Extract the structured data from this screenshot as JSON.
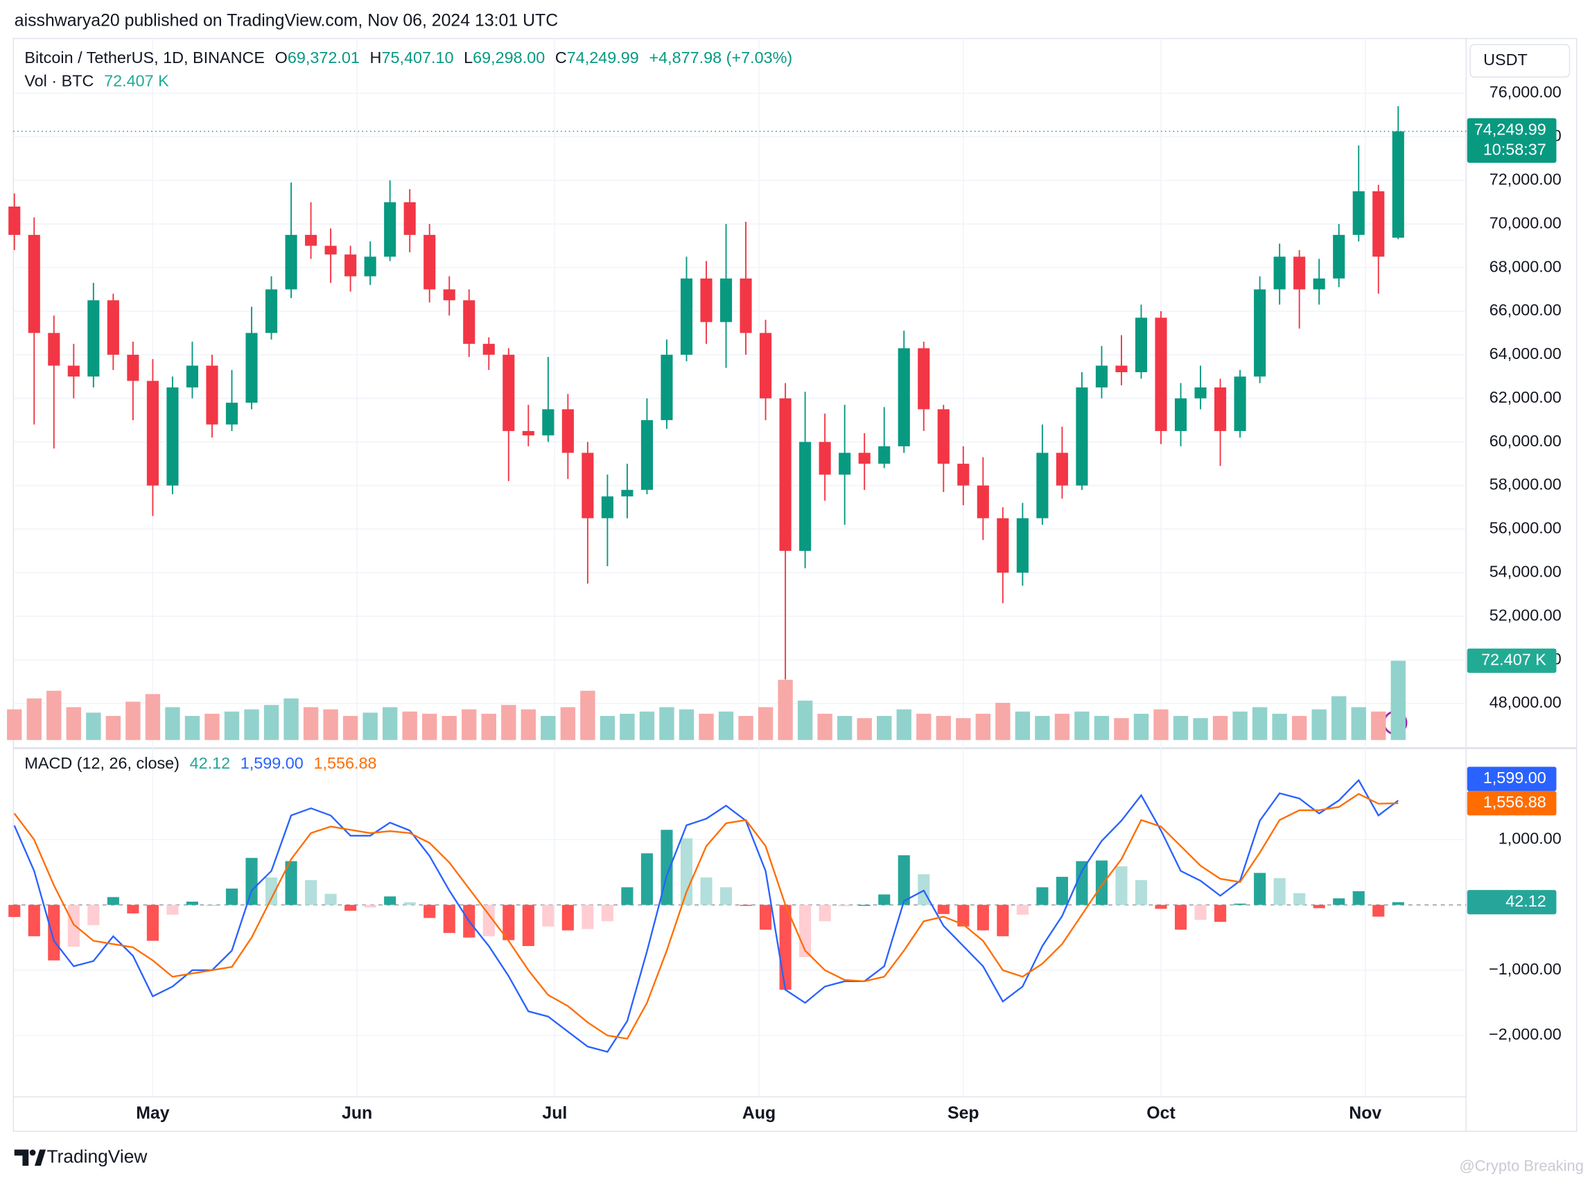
{
  "header": {
    "published": "aisshwarya20 published on TradingView.com, Nov 06, 2024 13:01 UTC"
  },
  "footer": {
    "brand": "TradingView",
    "watermark": "@Crypto Breaking"
  },
  "chart_data": [
    {
      "type": "candlestick",
      "title": "Bitcoin / TetherUS, 1D, BINANCE",
      "ohlc_legend": [
        {
          "label": "O",
          "value": "69,372.01"
        },
        {
          "label": "H",
          "value": "75,407.10"
        },
        {
          "label": "L",
          "value": "69,298.00"
        },
        {
          "label": "C",
          "value": "74,249.99"
        }
      ],
      "change": "+4,877.98 (+7.03%)",
      "currency": "USDT",
      "last_price": {
        "label": "74,249.99",
        "countdown": "10:58:37"
      },
      "up_color": "#089981",
      "down_color": "#f23645",
      "grid": true,
      "x": [
        0,
        3,
        6,
        9,
        12,
        15,
        18,
        21,
        24,
        27,
        30,
        33,
        36,
        39,
        42,
        45,
        48,
        51,
        54,
        57,
        60,
        63,
        66,
        69,
        72,
        75,
        78,
        81,
        84,
        87,
        90,
        93,
        96,
        99,
        102,
        105,
        108,
        111,
        114,
        117,
        120,
        123,
        126,
        129,
        132,
        135,
        138,
        141,
        144,
        147,
        150,
        153,
        156,
        159,
        162,
        165,
        168,
        171,
        174,
        177,
        180,
        183,
        186,
        189,
        192,
        195,
        198,
        201,
        204,
        207,
        210
      ],
      "xlim": [
        0,
        220
      ],
      "xticks": [
        {
          "value": 21,
          "label": "May"
        },
        {
          "value": 52,
          "label": "Jun"
        },
        {
          "value": 82,
          "label": "Jul"
        },
        {
          "value": 113,
          "label": "Aug"
        },
        {
          "value": 144,
          "label": "Sep"
        },
        {
          "value": 174,
          "label": "Oct"
        },
        {
          "value": 205,
          "label": "Nov"
        }
      ],
      "open": [
        70800,
        69500,
        65000,
        63500,
        63000,
        66500,
        64000,
        62800,
        58000,
        62500,
        63500,
        60800,
        61800,
        65000,
        67000,
        69500,
        69000,
        68600,
        67600,
        68500,
        71000,
        69500,
        67000,
        66500,
        64500,
        64000,
        60500,
        60300,
        61500,
        59500,
        56500,
        57500,
        57800,
        61000,
        64000,
        67500,
        65500,
        67500,
        65000,
        62000,
        55000,
        60000,
        58500,
        59500,
        59000,
        59800,
        64300,
        61500,
        59000,
        58000,
        56500,
        54000,
        56500,
        59500,
        58000,
        62500,
        63500,
        63200,
        65700,
        60500,
        62000,
        62500,
        60500,
        63000,
        67000,
        68500,
        67000,
        67500,
        69500,
        71500,
        69372.01
      ],
      "high": [
        71400,
        70300,
        65800,
        64500,
        67300,
        66800,
        64600,
        63800,
        63000,
        64600,
        64000,
        63300,
        66200,
        67600,
        71900,
        71000,
        69800,
        69000,
        69200,
        72000,
        71600,
        70000,
        67600,
        67000,
        64800,
        64300,
        61700,
        63900,
        62200,
        60000,
        58500,
        59000,
        62000,
        64700,
        68500,
        68300,
        70000,
        70100,
        65600,
        62700,
        62300,
        61300,
        61700,
        60400,
        61600,
        65100,
        64600,
        61700,
        59800,
        59300,
        57000,
        57200,
        60800,
        60700,
        63200,
        64400,
        64900,
        66300,
        66000,
        62700,
        63500,
        62900,
        63300,
        67600,
        69100,
        68800,
        68400,
        70000,
        73600,
        71800,
        75407.1
      ],
      "low": [
        68800,
        60800,
        59700,
        62000,
        62500,
        63300,
        61000,
        56600,
        57600,
        62000,
        60200,
        60500,
        61500,
        64700,
        66600,
        68400,
        67300,
        66900,
        67200,
        68300,
        68700,
        66400,
        65800,
        63900,
        63300,
        58200,
        59800,
        60000,
        58300,
        53500,
        54300,
        56500,
        57600,
        60600,
        63700,
        64500,
        63400,
        64000,
        61000,
        49100,
        54200,
        57300,
        56200,
        57800,
        58800,
        59500,
        60500,
        57700,
        57100,
        55500,
        52600,
        53400,
        56200,
        57400,
        57800,
        62000,
        62600,
        62900,
        59900,
        59800,
        61500,
        58900,
        60200,
        62700,
        66300,
        65200,
        66300,
        67100,
        69200,
        66800,
        69298.0
      ],
      "close": [
        69500,
        65000,
        63500,
        63000,
        66500,
        64000,
        62800,
        58000,
        62500,
        63500,
        60800,
        61800,
        65000,
        67000,
        69500,
        69000,
        68600,
        67600,
        68500,
        71000,
        69500,
        67000,
        66500,
        64500,
        64000,
        60500,
        60300,
        61500,
        59500,
        56500,
        57500,
        57800,
        61000,
        64000,
        67500,
        65500,
        67500,
        65000,
        62000,
        55000,
        60000,
        58500,
        59500,
        59000,
        59800,
        64300,
        61500,
        59000,
        58000,
        56500,
        54000,
        56500,
        59500,
        58000,
        62500,
        63500,
        63200,
        65700,
        60500,
        62000,
        62500,
        60500,
        63000,
        67000,
        68500,
        67000,
        67500,
        69500,
        71500,
        68500,
        74249.99
      ],
      "ylim": [
        45950,
        78510
      ],
      "yticks": [
        {
          "value": 48000,
          "label": "48,000.00"
        },
        {
          "value": 50000,
          "label": "50,000.00"
        },
        {
          "value": 52000,
          "label": "52,000.00"
        },
        {
          "value": 54000,
          "label": "54,000.00"
        },
        {
          "value": 56000,
          "label": "56,000.00"
        },
        {
          "value": 58000,
          "label": "58,000.00"
        },
        {
          "value": 60000,
          "label": "60,000.00"
        },
        {
          "value": 62000,
          "label": "62,000.00"
        },
        {
          "value": 64000,
          "label": "64,000.00"
        },
        {
          "value": 66000,
          "label": "66,000.00"
        },
        {
          "value": 68000,
          "label": "68,000.00"
        },
        {
          "value": 70000,
          "label": "70,000.00"
        },
        {
          "value": 72000,
          "label": "72,000.00"
        },
        {
          "value": 74000,
          "label": "74,000.00"
        },
        {
          "value": 76000,
          "label": "76,000.00"
        }
      ]
    },
    {
      "type": "volume-bar",
      "title": "Vol · BTC",
      "value_label": "72.407 K",
      "up_color": "#92d2cc",
      "down_color": "#f7a9a7",
      "label_color": "#22ab94",
      "x": [
        0,
        3,
        6,
        9,
        12,
        15,
        18,
        21,
        24,
        27,
        30,
        33,
        36,
        39,
        42,
        45,
        48,
        51,
        54,
        57,
        60,
        63,
        66,
        69,
        72,
        75,
        78,
        81,
        84,
        87,
        90,
        93,
        96,
        99,
        102,
        105,
        108,
        111,
        114,
        117,
        120,
        123,
        126,
        129,
        132,
        135,
        138,
        141,
        144,
        147,
        150,
        153,
        156,
        159,
        162,
        165,
        168,
        171,
        174,
        177,
        180,
        183,
        186,
        189,
        192,
        195,
        198,
        201,
        204,
        207,
        210
      ],
      "xlim": [
        0,
        220
      ],
      "values": [
        28,
        38,
        45,
        30,
        25,
        22,
        35,
        42,
        30,
        22,
        24,
        26,
        28,
        32,
        38,
        30,
        28,
        22,
        25,
        30,
        26,
        24,
        22,
        28,
        24,
        32,
        28,
        22,
        30,
        45,
        22,
        24,
        26,
        30,
        28,
        24,
        26,
        22,
        30,
        55,
        36,
        24,
        22,
        20,
        22,
        28,
        24,
        22,
        20,
        24,
        34,
        26,
        22,
        24,
        26,
        22,
        20,
        24,
        28,
        22,
        20,
        22,
        26,
        30,
        24,
        22,
        28,
        40,
        30,
        26,
        72.407
      ],
      "ylim": [
        0,
        100
      ]
    },
    {
      "type": "macd",
      "title": "MACD (12, 26, close)",
      "x": [
        0,
        3,
        6,
        9,
        12,
        15,
        18,
        21,
        24,
        27,
        30,
        33,
        36,
        39,
        42,
        45,
        48,
        51,
        54,
        57,
        60,
        63,
        66,
        69,
        72,
        75,
        78,
        81,
        84,
        87,
        90,
        93,
        96,
        99,
        102,
        105,
        108,
        111,
        114,
        117,
        120,
        123,
        126,
        129,
        132,
        135,
        138,
        141,
        144,
        147,
        150,
        153,
        156,
        159,
        162,
        165,
        168,
        171,
        174,
        177,
        180,
        183,
        186,
        189,
        192,
        195,
        198,
        201,
        204,
        207,
        210
      ],
      "xlim": [
        0,
        220
      ],
      "ylim": [
        -2940,
        2370
      ],
      "yticks": [
        {
          "value": -2000,
          "label": "−2,000.00"
        },
        {
          "value": -1000,
          "label": "−1,000.00"
        },
        {
          "value": 1000,
          "label": "1,000.00"
        }
      ],
      "histogram": {
        "colors": [
          "#26a69a",
          "#b2dfdb",
          "#ff5252",
          "#ffcdd2"
        ],
        "legend_value": "42.12",
        "label_color": "#26a69a",
        "values": [
          -185,
          -480,
          -850,
          -640,
          -310,
          120,
          -130,
          -550,
          -150,
          50,
          0,
          250,
          720,
          420,
          670,
          380,
          170,
          -90,
          -40,
          130,
          40,
          -200,
          -430,
          -500,
          -480,
          -540,
          -630,
          -330,
          -390,
          -370,
          -250,
          270,
          790,
          1150,
          1020,
          420,
          270,
          -10,
          -380,
          -1300,
          -800,
          -250,
          -20,
          0,
          160,
          760,
          470,
          -140,
          -330,
          -390,
          -480,
          -150,
          270,
          430,
          670,
          680,
          590,
          380,
          -60,
          -380,
          -230,
          -260,
          20,
          490,
          410,
          180,
          -50,
          100,
          210,
          -180,
          42.12
        ]
      },
      "series": [
        {
          "color": "#2962ff",
          "legend_value": "1,599.00",
          "values": [
            1215,
            520,
            -550,
            -940,
            -860,
            -480,
            -780,
            -1400,
            -1250,
            -1000,
            -1000,
            -700,
            220,
            520,
            1370,
            1480,
            1370,
            1060,
            1060,
            1260,
            1140,
            750,
            220,
            -250,
            -630,
            -1090,
            -1630,
            -1710,
            -1940,
            -2170,
            -2250,
            -1780,
            -710,
            450,
            1220,
            1320,
            1520,
            1290,
            520,
            -1300,
            -1500,
            -1250,
            -1170,
            -1170,
            -940,
            60,
            220,
            -320,
            -630,
            -940,
            -1480,
            -1250,
            -630,
            -170,
            520,
            980,
            1290,
            1680,
            1140,
            520,
            370,
            140,
            370,
            1290,
            1710,
            1630,
            1400,
            1600,
            1910,
            1370,
            1599
          ]
        },
        {
          "color": "#ff6d00",
          "legend_value": "1,556.88",
          "values": [
            1400,
            1000,
            300,
            -300,
            -550,
            -600,
            -650,
            -850,
            -1100,
            -1050,
            -1000,
            -950,
            -500,
            100,
            700,
            1100,
            1200,
            1150,
            1100,
            1130,
            1100,
            950,
            650,
            250,
            -150,
            -550,
            -1000,
            -1380,
            -1550,
            -1800,
            -2000,
            -2050,
            -1500,
            -700,
            200,
            900,
            1250,
            1300,
            900,
            0,
            -700,
            -1000,
            -1150,
            -1170,
            -1100,
            -700,
            -250,
            -180,
            -300,
            -550,
            -1000,
            -1100,
            -900,
            -600,
            -150,
            300,
            700,
            1300,
            1200,
            900,
            600,
            400,
            350,
            800,
            1300,
            1450,
            1450,
            1500,
            1700,
            1550,
            1556.88
          ]
        }
      ]
    }
  ]
}
